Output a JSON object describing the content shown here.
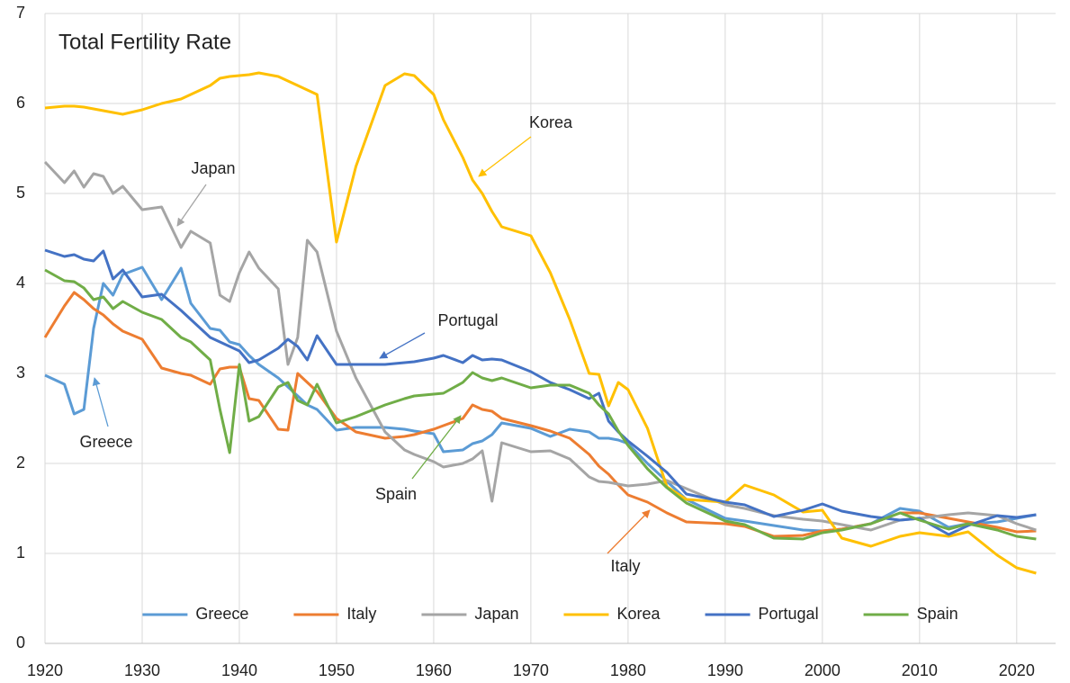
{
  "chart_data": {
    "type": "line",
    "title": "Total Fertility Rate",
    "x": [
      1920,
      1922,
      1923,
      1924,
      1925,
      1926,
      1927,
      1928,
      1930,
      1932,
      1934,
      1935,
      1937,
      1938,
      1939,
      1940,
      1941,
      1942,
      1944,
      1945,
      1946,
      1947,
      1948,
      1950,
      1952,
      1955,
      1957,
      1958,
      1960,
      1961,
      1963,
      1964,
      1965,
      1966,
      1967,
      1970,
      1972,
      1974,
      1976,
      1977,
      1978,
      1979,
      1980,
      1982,
      1984,
      1986,
      1990,
      1992,
      1995,
      1998,
      2000,
      2002,
      2005,
      2008,
      2010,
      2013,
      2015,
      2018,
      2020,
      2022
    ],
    "series": [
      {
        "name": "Greece",
        "color": "#5b9bd5",
        "values": [
          2.98,
          2.88,
          2.55,
          2.6,
          3.5,
          4.0,
          3.87,
          4.1,
          4.18,
          3.82,
          4.17,
          3.78,
          3.5,
          3.48,
          3.35,
          3.32,
          3.2,
          3.1,
          2.95,
          2.85,
          2.75,
          2.65,
          2.6,
          2.37,
          2.4,
          2.4,
          2.38,
          2.36,
          2.33,
          2.13,
          2.15,
          2.22,
          2.25,
          2.32,
          2.45,
          2.39,
          2.3,
          2.38,
          2.35,
          2.28,
          2.28,
          2.26,
          2.22,
          2.0,
          1.8,
          1.6,
          1.39,
          1.36,
          1.31,
          1.26,
          1.25,
          1.27,
          1.33,
          1.5,
          1.47,
          1.29,
          1.33,
          1.35,
          1.39,
          1.43
        ]
      },
      {
        "name": "Italy",
        "color": "#ed7d31",
        "values": [
          3.4,
          3.75,
          3.9,
          3.82,
          3.72,
          3.65,
          3.55,
          3.47,
          3.38,
          3.06,
          3.0,
          2.98,
          2.88,
          3.05,
          3.07,
          3.07,
          2.72,
          2.7,
          2.38,
          2.37,
          3.0,
          2.9,
          2.8,
          2.5,
          2.35,
          2.28,
          2.3,
          2.32,
          2.38,
          2.42,
          2.5,
          2.65,
          2.6,
          2.58,
          2.5,
          2.42,
          2.36,
          2.28,
          2.1,
          1.97,
          1.88,
          1.76,
          1.65,
          1.57,
          1.45,
          1.35,
          1.33,
          1.3,
          1.19,
          1.2,
          1.25,
          1.27,
          1.33,
          1.45,
          1.45,
          1.39,
          1.35,
          1.29,
          1.24,
          1.25
        ]
      },
      {
        "name": "Japan",
        "color": "#a5a5a5",
        "values": [
          5.35,
          5.12,
          5.25,
          5.07,
          5.22,
          5.19,
          5.0,
          5.08,
          4.82,
          4.85,
          4.4,
          4.58,
          4.45,
          3.87,
          3.8,
          4.12,
          4.35,
          4.17,
          3.94,
          3.1,
          3.4,
          4.48,
          4.35,
          3.47,
          2.95,
          2.35,
          2.15,
          2.1,
          2.02,
          1.96,
          2.0,
          2.05,
          2.14,
          1.58,
          2.23,
          2.13,
          2.14,
          2.05,
          1.85,
          1.8,
          1.79,
          1.77,
          1.75,
          1.77,
          1.81,
          1.72,
          1.54,
          1.5,
          1.42,
          1.38,
          1.36,
          1.32,
          1.26,
          1.37,
          1.39,
          1.43,
          1.45,
          1.42,
          1.33,
          1.26
        ]
      },
      {
        "name": "Korea",
        "color": "#ffc000",
        "values": [
          5.95,
          5.97,
          5.97,
          5.96,
          5.94,
          5.92,
          5.9,
          5.88,
          5.93,
          6.0,
          6.05,
          6.1,
          6.2,
          6.28,
          6.3,
          6.31,
          6.32,
          6.34,
          6.3,
          6.25,
          6.2,
          6.15,
          6.1,
          4.46,
          5.3,
          6.2,
          6.33,
          6.31,
          6.1,
          5.82,
          5.4,
          5.15,
          5.0,
          4.8,
          4.63,
          4.53,
          4.12,
          3.6,
          3.0,
          2.99,
          2.64,
          2.9,
          2.82,
          2.39,
          1.74,
          1.6,
          1.57,
          1.76,
          1.65,
          1.46,
          1.48,
          1.17,
          1.08,
          1.19,
          1.23,
          1.19,
          1.24,
          0.98,
          0.84,
          0.78
        ]
      },
      {
        "name": "Portugal",
        "color": "#4472c4",
        "values": [
          4.37,
          4.3,
          4.32,
          4.27,
          4.25,
          4.36,
          4.05,
          4.15,
          3.85,
          3.88,
          3.7,
          3.6,
          3.4,
          3.35,
          3.3,
          3.25,
          3.12,
          3.15,
          3.28,
          3.38,
          3.3,
          3.15,
          3.42,
          3.1,
          3.1,
          3.1,
          3.12,
          3.13,
          3.17,
          3.2,
          3.12,
          3.2,
          3.15,
          3.16,
          3.15,
          3.02,
          2.9,
          2.82,
          2.72,
          2.78,
          2.47,
          2.35,
          2.25,
          2.08,
          1.9,
          1.66,
          1.57,
          1.54,
          1.41,
          1.48,
          1.55,
          1.47,
          1.41,
          1.37,
          1.39,
          1.21,
          1.31,
          1.42,
          1.4,
          1.43
        ]
      },
      {
        "name": "Spain",
        "color": "#70ad47",
        "values": [
          4.15,
          4.03,
          4.02,
          3.95,
          3.82,
          3.85,
          3.72,
          3.8,
          3.68,
          3.6,
          3.4,
          3.35,
          3.15,
          2.6,
          2.12,
          3.1,
          2.47,
          2.52,
          2.85,
          2.9,
          2.7,
          2.65,
          2.88,
          2.45,
          2.52,
          2.65,
          2.72,
          2.75,
          2.77,
          2.78,
          2.9,
          3.01,
          2.95,
          2.92,
          2.95,
          2.84,
          2.87,
          2.87,
          2.78,
          2.65,
          2.55,
          2.36,
          2.2,
          1.94,
          1.73,
          1.56,
          1.36,
          1.32,
          1.17,
          1.16,
          1.23,
          1.26,
          1.33,
          1.45,
          1.37,
          1.27,
          1.33,
          1.26,
          1.19,
          1.16
        ]
      }
    ],
    "annotations": [
      "Korea",
      "Japan",
      "Portugal",
      "Greece",
      "Spain",
      "Italy"
    ],
    "xlim": [
      1920,
      2024
    ],
    "xticks": [
      1920,
      1930,
      1940,
      1950,
      1960,
      1970,
      1980,
      1990,
      2000,
      2010,
      2020
    ],
    "ylim": [
      0,
      7
    ],
    "yticks": [
      0,
      1,
      2,
      3,
      4,
      5,
      6,
      7
    ],
    "grid": true,
    "legend": "bottom"
  }
}
